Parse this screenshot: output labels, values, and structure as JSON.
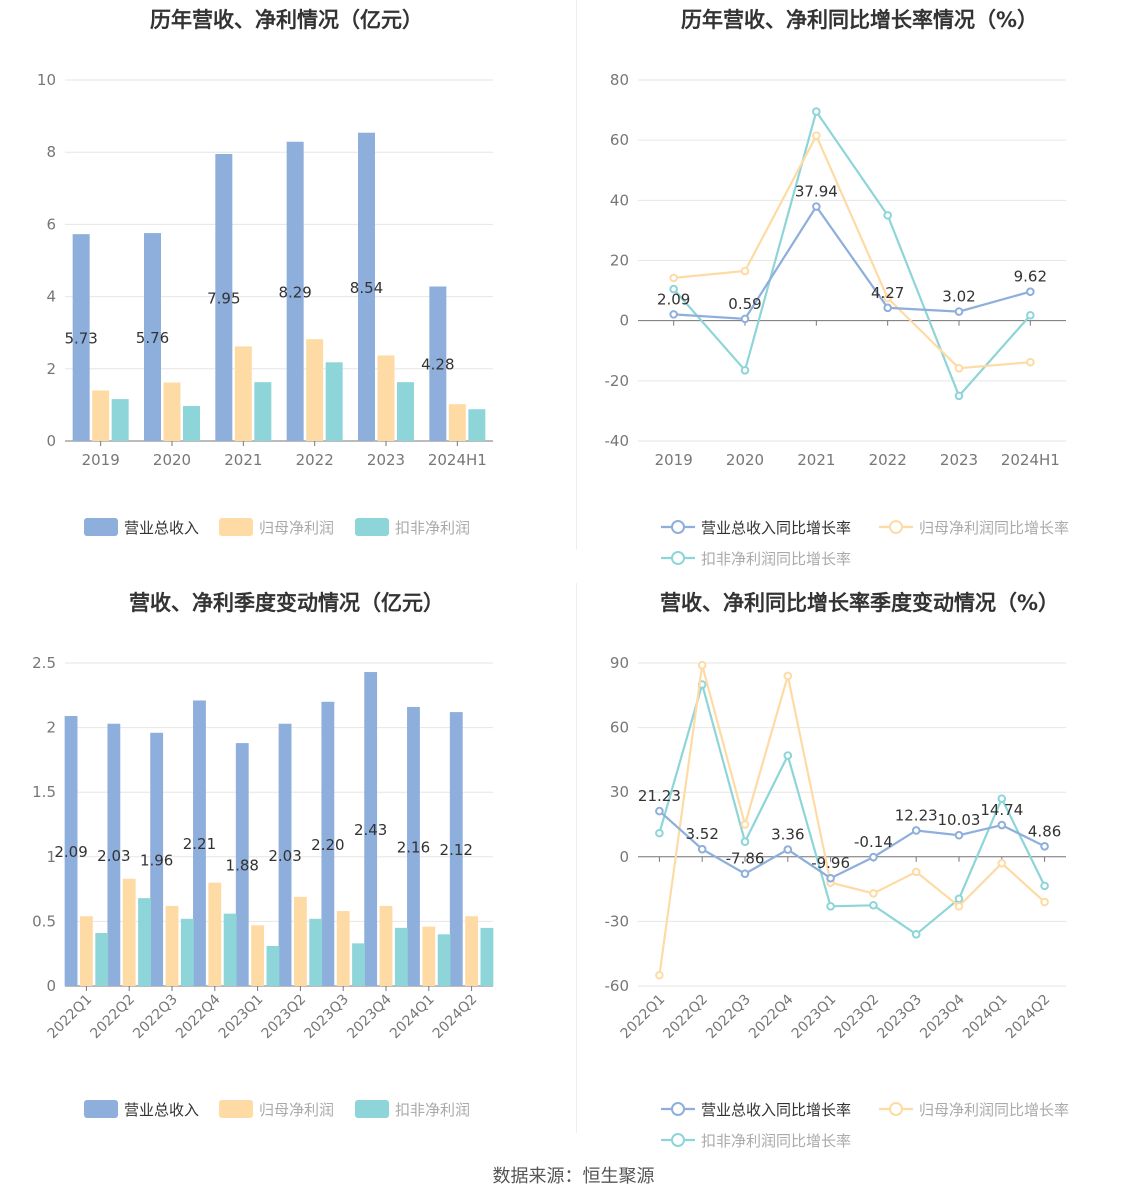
{
  "footer": "数据来源：恒生聚源",
  "colors": {
    "revenue": "#8eaedc",
    "net": "#fedba5",
    "deducted": "#8dd5d8",
    "axis": "#666666",
    "grid": "#e6e6e6"
  },
  "chart_data": [
    {
      "type": "bar",
      "title": "历年营收、净利情况（亿元）",
      "categories": [
        "2019",
        "2020",
        "2021",
        "2022",
        "2023",
        "2024H1"
      ],
      "ylim": [
        0,
        10
      ],
      "yticks": [
        "0",
        "2",
        "4",
        "6",
        "8",
        "10"
      ],
      "series": [
        {
          "name": "营业总收入",
          "values": [
            5.73,
            5.76,
            7.95,
            8.29,
            8.54,
            4.28
          ],
          "labels": [
            "5.73",
            "5.76",
            "7.95",
            "8.29",
            "8.54",
            "4.28"
          ]
        },
        {
          "name": "归母净利润",
          "values": [
            1.4,
            1.62,
            2.62,
            2.82,
            2.37,
            1.02
          ]
        },
        {
          "name": "扣非净利润",
          "values": [
            1.16,
            0.97,
            1.63,
            2.18,
            1.63,
            0.88
          ]
        }
      ],
      "legend": "bottom"
    },
    {
      "type": "line",
      "title": "历年营收、净利同比增长率情况（%）",
      "categories": [
        "2019",
        "2020",
        "2021",
        "2022",
        "2023",
        "2024H1"
      ],
      "ylim": [
        -40,
        80
      ],
      "yticks": [
        "-40",
        "-20",
        "0",
        "20",
        "40",
        "60",
        "80"
      ],
      "series": [
        {
          "name": "营业总收入同比增长率",
          "values": [
            2.09,
            0.59,
            37.94,
            4.27,
            3.02,
            9.62
          ],
          "labels": [
            "2.09",
            "0.59",
            "37.94",
            "4.27",
            "3.02",
            "9.62"
          ]
        },
        {
          "name": "归母净利润同比增长率",
          "values": [
            14.2,
            16.5,
            61.5,
            7.5,
            -15.8,
            -13.8
          ]
        },
        {
          "name": "扣非净利润同比增长率",
          "values": [
            10.5,
            -16.5,
            69.5,
            35.0,
            -25.0,
            1.8
          ]
        }
      ],
      "legend": "bottom"
    },
    {
      "type": "bar",
      "title": "营收、净利季度变动情况（亿元）",
      "categories": [
        "2022Q1",
        "2022Q2",
        "2022Q3",
        "2022Q4",
        "2023Q1",
        "2023Q2",
        "2023Q3",
        "2023Q4",
        "2024Q1",
        "2024Q2"
      ],
      "ylim": [
        0,
        2.5
      ],
      "yticks": [
        "0",
        "0.5",
        "1",
        "1.5",
        "2",
        "2.5"
      ],
      "series": [
        {
          "name": "营业总收入",
          "values": [
            2.09,
            2.03,
            1.96,
            2.21,
            1.88,
            2.03,
            2.2,
            2.43,
            2.16,
            2.12
          ],
          "labels": [
            "2.09",
            "2.03",
            "1.96",
            "2.21",
            "1.88",
            "2.03",
            "2.20",
            "2.43",
            "2.16",
            "2.12"
          ]
        },
        {
          "name": "归母净利润",
          "values": [
            0.54,
            0.83,
            0.62,
            0.8,
            0.47,
            0.69,
            0.58,
            0.62,
            0.46,
            0.54
          ]
        },
        {
          "name": "扣非净利润",
          "values": [
            0.41,
            0.68,
            0.52,
            0.56,
            0.31,
            0.52,
            0.33,
            0.45,
            0.4,
            0.45
          ]
        }
      ],
      "legend": "bottom"
    },
    {
      "type": "line",
      "title": "营收、净利同比增长率季度变动情况（%）",
      "categories": [
        "2022Q1",
        "2022Q2",
        "2022Q3",
        "2022Q4",
        "2023Q1",
        "2023Q2",
        "2023Q3",
        "2023Q4",
        "2024Q1",
        "2024Q2"
      ],
      "ylim": [
        -60,
        90
      ],
      "yticks": [
        "-60",
        "-30",
        "0",
        "30",
        "60",
        "90"
      ],
      "series": [
        {
          "name": "营业总收入同比增长率",
          "values": [
            21.23,
            3.52,
            -7.86,
            3.36,
            -9.96,
            -0.14,
            12.23,
            10.03,
            14.74,
            4.86
          ],
          "labels": [
            "21.23",
            "3.52",
            "-7.86",
            "3.36",
            "-9.96",
            "-0.14",
            "12.23",
            "10.03",
            "14.74",
            "4.86"
          ]
        },
        {
          "name": "归母净利润同比增长率",
          "values": [
            -55.0,
            89.0,
            15.0,
            84.0,
            -12.0,
            -17.0,
            -7.0,
            -23.0,
            -3.0,
            -21.0
          ]
        },
        {
          "name": "扣非净利润同比增长率",
          "values": [
            11.0,
            80.0,
            7.0,
            47.0,
            -23.0,
            -22.5,
            -36.0,
            -19.5,
            27.0,
            -13.5
          ]
        }
      ],
      "legend": "bottom"
    }
  ]
}
